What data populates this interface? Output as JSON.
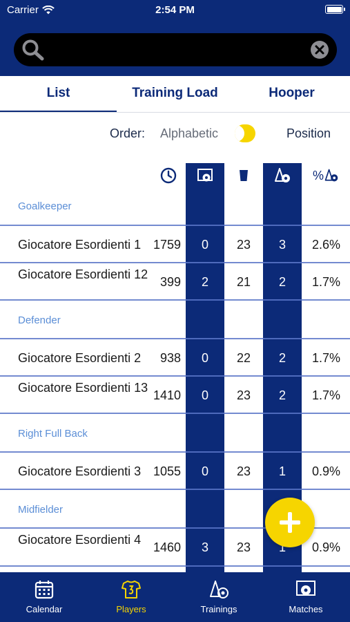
{
  "status_bar": {
    "carrier": "Carrier",
    "time": "2:54 PM"
  },
  "search": {
    "value": "",
    "placeholder": ""
  },
  "tabs": [
    {
      "label": "List",
      "active": true
    },
    {
      "label": "Training Load",
      "active": false
    },
    {
      "label": "Hooper",
      "active": false
    }
  ],
  "order": {
    "label": "Order:",
    "option_a": "Alphabetic",
    "option_b": "Position",
    "selected": "Position"
  },
  "columns": [
    "minutes-clock-icon",
    "goalkeeper-goal-icon",
    "glass-icon",
    "trainings-cone-icon",
    "percent-trainings-icon"
  ],
  "column_headers": {
    "percent": "%"
  },
  "sections": [
    {
      "label": "Goalkeeper",
      "players": [
        {
          "name": "Giocatore Esordienti 1",
          "minutes": "1759",
          "c1": "0",
          "c2": "23",
          "c3": "3",
          "pct": "2.6%"
        },
        {
          "name": "Giocatore Esordienti 12",
          "minutes": "399",
          "c1": "2",
          "c2": "21",
          "c3": "2",
          "pct": "1.7%"
        }
      ]
    },
    {
      "label": "Defender",
      "players": [
        {
          "name": "Giocatore Esordienti 2",
          "minutes": "938",
          "c1": "0",
          "c2": "22",
          "c3": "2",
          "pct": "1.7%"
        },
        {
          "name": "Giocatore Esordienti 13",
          "minutes": "1410",
          "c1": "0",
          "c2": "23",
          "c3": "2",
          "pct": "1.7%"
        }
      ]
    },
    {
      "label": "Right Full Back",
      "players": [
        {
          "name": "Giocatore Esordienti 3",
          "minutes": "1055",
          "c1": "0",
          "c2": "23",
          "c3": "1",
          "pct": "0.9%"
        }
      ]
    },
    {
      "label": "Midfielder",
      "players": [
        {
          "name": "Giocatore Esordienti 4",
          "minutes": "1460",
          "c1": "3",
          "c2": "23",
          "c3": "1",
          "pct": "0.9%"
        }
      ]
    }
  ],
  "fab": {
    "icon": "plus-icon"
  },
  "bottom_nav": [
    {
      "label": "Calendar",
      "icon": "calendar-icon",
      "active": false
    },
    {
      "label": "Players",
      "icon": "players-shirt-icon",
      "active": true
    },
    {
      "label": "Trainings",
      "icon": "trainings-icon",
      "active": false
    },
    {
      "label": "Matches",
      "icon": "matches-icon",
      "active": false
    }
  ],
  "colors": {
    "primary": "#0c2a78",
    "accent": "#f6d500",
    "section_text": "#5b8ed6"
  }
}
